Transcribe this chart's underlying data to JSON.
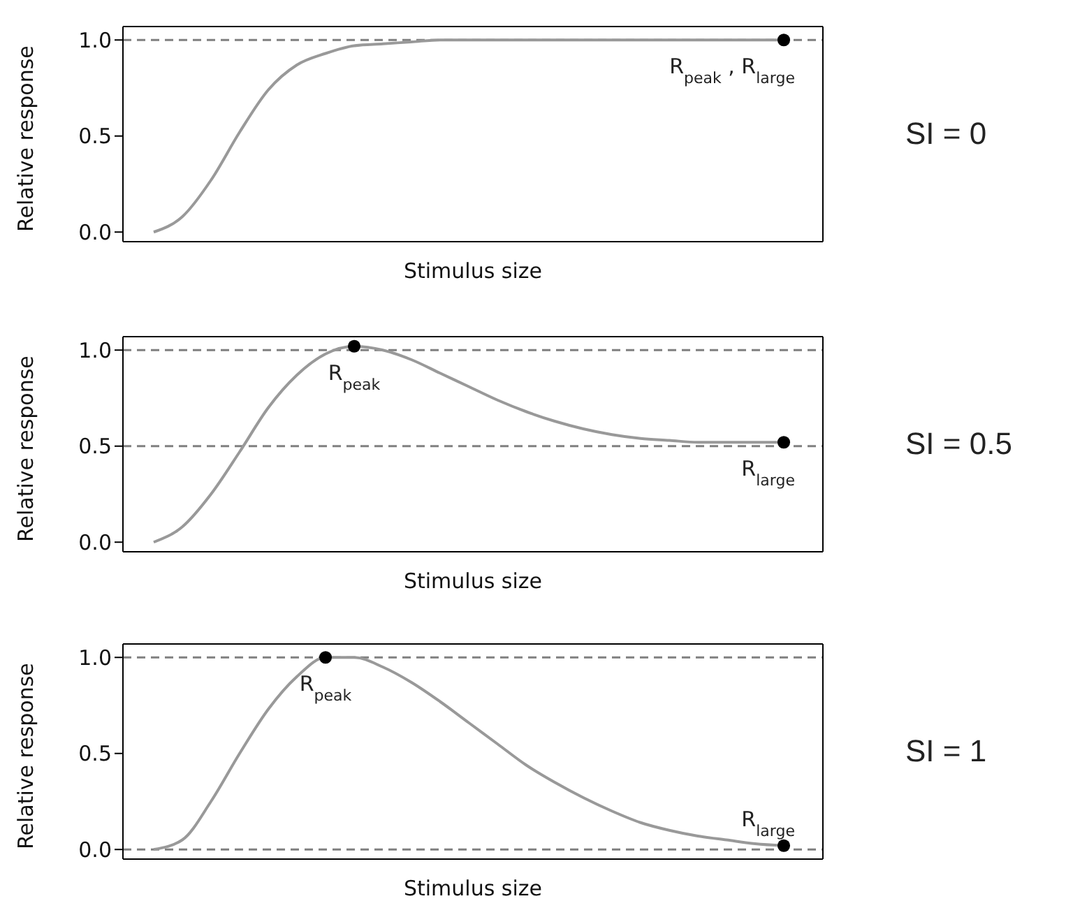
{
  "chart_data": [
    {
      "type": "line",
      "xlabel": "Stimulus size",
      "ylabel": "Relative response",
      "categories": [
        null,
        null,
        null,
        null,
        null,
        null,
        null,
        null,
        null,
        null,
        null,
        null,
        null,
        null,
        null,
        null,
        null,
        null,
        null,
        null,
        null,
        null,
        null
      ],
      "ylim": [
        -0.05,
        1.07
      ],
      "yticks": [
        {
          "value": 0,
          "label": "0.0"
        },
        {
          "value": 0.5,
          "label": "0.5"
        },
        {
          "value": 1,
          "label": "1.0"
        }
      ],
      "tick_labels": "y",
      "line_style": "solid",
      "series": [
        {
          "type": "line",
          "marker": "none",
          "color": "#999999",
          "values": [
            0,
            0.08,
            0.27,
            0.52,
            0.74,
            0.87,
            0.93,
            0.97,
            0.98,
            0.99,
            1,
            1,
            1,
            1,
            1,
            1,
            1,
            1,
            1,
            1,
            1,
            1,
            1
          ]
        },
        {
          "type": "scatter",
          "marker": "circle",
          "color": "#000000",
          "values": [
            null,
            null,
            null,
            null,
            null,
            null,
            null,
            null,
            null,
            null,
            null,
            null,
            null,
            null,
            null,
            null,
            null,
            null,
            null,
            null,
            null,
            null,
            1
          ],
          "value_labels": [
            null,
            null,
            null,
            null,
            null,
            null,
            null,
            null,
            null,
            null,
            null,
            null,
            null,
            null,
            null,
            null,
            null,
            null,
            null,
            null,
            null,
            null,
            "R$_{peak}$ , R$_{large}$"
          ]
        }
      ],
      "ref_lines": [
        {
          "axis": "y",
          "value": 1,
          "color": "#808080",
          "line_style": "dashed"
        }
      ],
      "annotations": [
        "SI = 0"
      ]
    },
    {
      "type": "line",
      "xlabel": "Stimulus size",
      "ylabel": "Relative response",
      "categories": [
        null,
        null,
        null,
        null,
        null,
        null,
        null,
        null,
        null,
        null,
        null,
        null,
        null,
        null,
        null,
        null,
        null,
        null,
        null,
        null,
        null,
        null,
        null
      ],
      "ylim": [
        -0.05,
        1.07
      ],
      "yticks": [
        {
          "value": 0,
          "label": "0.0"
        },
        {
          "value": 0.5,
          "label": "0.5"
        },
        {
          "value": 1,
          "label": "1.0"
        }
      ],
      "tick_labels": "y",
      "line_style": "solid",
      "series": [
        {
          "type": "line",
          "marker": "none",
          "color": "#999999",
          "values": [
            0,
            0.08,
            0.25,
            0.47,
            0.7,
            0.87,
            0.98,
            1.02,
            1,
            0.95,
            0.88,
            0.81,
            0.74,
            0.68,
            0.63,
            0.59,
            0.56,
            0.54,
            0.53,
            0.52,
            0.52,
            0.52,
            0.52
          ]
        },
        {
          "type": "scatter",
          "marker": "circle",
          "color": "#000000",
          "values": [
            null,
            null,
            null,
            null,
            null,
            null,
            null,
            1.02,
            null,
            null,
            null,
            null,
            null,
            null,
            null,
            null,
            null,
            null,
            null,
            null,
            null,
            null,
            0.52
          ],
          "value_labels": [
            null,
            null,
            null,
            null,
            null,
            null,
            null,
            "R$_{peak}$",
            null,
            null,
            null,
            null,
            null,
            null,
            null,
            null,
            null,
            null,
            null,
            null,
            null,
            null,
            "R$_{large}$"
          ]
        }
      ],
      "ref_lines": [
        {
          "axis": "y",
          "value": 1,
          "color": "#808080",
          "line_style": "dashed"
        },
        {
          "axis": "y",
          "value": 0.5,
          "color": "#808080",
          "line_style": "dashed"
        }
      ],
      "annotations": [
        "SI = 0.5"
      ]
    },
    {
      "type": "line",
      "xlabel": "Stimulus size",
      "ylabel": "Relative response",
      "categories": [
        null,
        null,
        null,
        null,
        null,
        null,
        null,
        null,
        null,
        null,
        null,
        null,
        null,
        null,
        null,
        null,
        null,
        null,
        null,
        null,
        null,
        null,
        null
      ],
      "ylim": [
        -0.05,
        1.07
      ],
      "yticks": [
        {
          "value": 0,
          "label": "0.0"
        },
        {
          "value": 0.5,
          "label": "0.5"
        },
        {
          "value": 1,
          "label": "1.0"
        }
      ],
      "tick_labels": "y",
      "line_style": "solid",
      "series": [
        {
          "type": "line",
          "marker": "none",
          "color": "#999999",
          "values": [
            0,
            0.05,
            0.25,
            0.5,
            0.73,
            0.9,
            1,
            1,
            0.95,
            0.87,
            0.77,
            0.66,
            0.55,
            0.44,
            0.35,
            0.27,
            0.2,
            0.14,
            0.1,
            0.07,
            0.05,
            0.03,
            0.02
          ]
        },
        {
          "type": "scatter",
          "marker": "circle",
          "color": "#000000",
          "values": [
            null,
            null,
            null,
            null,
            null,
            null,
            1,
            null,
            null,
            null,
            null,
            null,
            null,
            null,
            null,
            null,
            null,
            null,
            null,
            null,
            null,
            null,
            0.02
          ],
          "value_labels": [
            null,
            null,
            null,
            null,
            null,
            null,
            "R$_{peak}$",
            null,
            null,
            null,
            null,
            null,
            null,
            null,
            null,
            null,
            null,
            null,
            null,
            null,
            null,
            null,
            "R$_{large}$"
          ]
        }
      ],
      "ref_lines": [
        {
          "axis": "y",
          "value": 1,
          "color": "#808080",
          "line_style": "dashed"
        },
        {
          "axis": "y",
          "value": 0,
          "color": "#808080",
          "line_style": "dashed"
        }
      ],
      "annotations": [
        "SI = 1"
      ]
    }
  ]
}
